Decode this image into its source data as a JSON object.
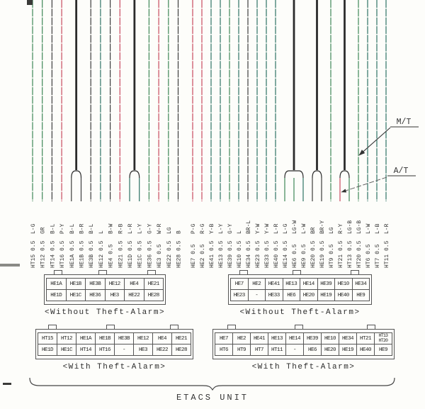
{
  "title": "ETACS wiring diagram",
  "colors": {
    "green": "#3e8757",
    "red": "#c8495e",
    "dark": "#3d3d3d",
    "teal": "#2e7265",
    "stem": "#2b2b2b",
    "ink": "#333333"
  },
  "code_color_map": {
    "L-G": "green",
    "GR": "green",
    "G-Y": "green",
    "LG": "green",
    "LG-W": "green",
    "LG-B": "green",
    "P-Y": "red",
    "R-B": "red",
    "W-R": "red",
    "P-G": "red",
    "R-G": "red",
    "R-Y": "red",
    "B-L": "dark",
    "B-R": "dark",
    "B-W": "dark",
    "B": "dark",
    "BR-L": "dark",
    "BR": "dark",
    "BR-Y": "dark",
    "L": "teal",
    "L-R": "teal",
    "L-Y": "teal",
    "Y-B": "teal",
    "Y-W": "teal",
    "L-W": "teal",
    "L-B": "teal"
  },
  "wire_groups": [
    {
      "name": "left",
      "wires": [
        {
          "id": "HT15",
          "size": "0.5",
          "code": "L-G"
        },
        {
          "id": "HT12",
          "size": "0.5",
          "code": "GR"
        },
        {
          "id": "HT14",
          "size": "0.5",
          "code": "B-L"
        },
        {
          "id": "HT16",
          "size": "0.5",
          "code": "P-Y"
        },
        {
          "id": "HE1A",
          "size": "0.5",
          "code": "B-L"
        },
        {
          "id": "HE1B",
          "size": "0.5",
          "code": "B-R"
        },
        {
          "id": "HE3B",
          "size": "0.5",
          "code": "B-L"
        },
        {
          "id": "HE12",
          "size": "0.5",
          "code": "L"
        },
        {
          "id": "HE4",
          "size": "0.5",
          "code": "B-W"
        },
        {
          "id": "HE21",
          "size": "0.5",
          "code": "R-B"
        },
        {
          "id": "HE1D",
          "size": "0.5",
          "code": "L-R"
        },
        {
          "id": "HE1C",
          "size": "0.5",
          "code": "L-Y"
        },
        {
          "id": "HE36",
          "size": "0.5",
          "code": "G-Y"
        },
        {
          "id": "HE3",
          "size": "0.5",
          "code": "W-R"
        },
        {
          "id": "HE22",
          "size": "0.5",
          "code": "LG"
        },
        {
          "id": "HE28",
          "size": "0.5",
          "code": "B"
        }
      ],
      "merges": [
        [
          4,
          5
        ],
        [
          10,
          11
        ]
      ]
    },
    {
      "name": "right",
      "wires": [
        {
          "id": "HE7",
          "size": "0.5",
          "code": "P-G"
        },
        {
          "id": "HE2",
          "size": "0.5",
          "code": "R-G"
        },
        {
          "id": "HE41",
          "size": "0.5",
          "code": "Y-B"
        },
        {
          "id": "HE13",
          "size": "0.5",
          "code": "L-Y"
        },
        {
          "id": "HE39",
          "size": "0.5",
          "code": "G-Y"
        },
        {
          "id": "HE10",
          "size": "0.5",
          "code": "L"
        },
        {
          "id": "HE34",
          "size": "0.5",
          "code": "BR-L"
        },
        {
          "id": "HE23",
          "size": "0.5",
          "code": "Y-W"
        },
        {
          "id": "HE33",
          "size": "0.5",
          "code": "Y-W"
        },
        {
          "id": "HE40",
          "size": "0.5",
          "code": "L-R"
        },
        {
          "id": "HE14",
          "size": "0.5",
          "code": "L-G"
        },
        {
          "id": "HE6",
          "size": "0.5",
          "code": "LG-W"
        },
        {
          "id": "HE9",
          "size": "0.5",
          "code": "L-W"
        },
        {
          "id": "HE20",
          "size": "0.5",
          "code": "BR"
        },
        {
          "id": "HE19",
          "size": "0.5",
          "code": "BR-Y"
        },
        {
          "id": "HT9",
          "size": "0.5",
          "code": "LG"
        },
        {
          "id": "HT21",
          "size": "0.5",
          "code": "R-Y"
        },
        {
          "id": "HT13",
          "size": "0.5",
          "code": "LG-B"
        },
        {
          "id": "HT20",
          "size": "0.5",
          "code": "LG-B"
        },
        {
          "id": "HT6",
          "size": "0.5",
          "code": "L-W"
        },
        {
          "id": "HT7",
          "size": "0.5",
          "code": "L-B"
        },
        {
          "id": "HT11",
          "size": "0.5",
          "code": "L-R"
        }
      ],
      "merges": [
        [
          10,
          11,
          12
        ],
        [
          13,
          14
        ],
        [
          16,
          17
        ]
      ]
    }
  ],
  "annotations": {
    "mt_label": "M/T",
    "at_label": "A/T"
  },
  "connectors": [
    {
      "name": "left-without-theft-alarm",
      "caption": "<Without Theft-Alarm>",
      "rows": [
        [
          "HE1A",
          "HE1B",
          "HE3B",
          "HE12",
          "HE4",
          "HE21"
        ],
        [
          "HE1D",
          "HE1C",
          "HE36",
          "HE3",
          "HE22",
          "HE28"
        ]
      ]
    },
    {
      "name": "right-without-theft-alarm",
      "caption": "<Without Theft-Alarm>",
      "rows": [
        [
          "HE7",
          "HE2",
          "HE41",
          "HE13",
          "HE14",
          "HE39",
          "HE10",
          "HE34"
        ],
        [
          "HE23",
          "-",
          "HE33",
          "HE6",
          "HE20",
          "HE19",
          "HE40",
          "HE9"
        ]
      ]
    },
    {
      "name": "left-with-theft-alarm",
      "caption": "<With Theft-Alarm>",
      "rows": [
        [
          "HT15",
          "HT12",
          "HE1A",
          "HE1B",
          "HE3B",
          "HE12",
          "HE4",
          "HE21"
        ],
        [
          "HE1D",
          "HE1C",
          "HT14",
          "HT16",
          "-",
          "HE3",
          "HE22",
          "HE28"
        ]
      ]
    },
    {
      "name": "right-with-theft-alarm",
      "caption": "<With Theft-Alarm>",
      "rows": [
        [
          "HE7",
          "HE2",
          "HE41",
          "HE13",
          "HE14",
          "HE39",
          "HE10",
          "HE34",
          "HT21",
          "HT13\nHT20"
        ],
        [
          "HT6",
          "HT9",
          "HT7",
          "HT11",
          "-",
          "HE6",
          "HE20",
          "HE19",
          "HE40",
          "HE9"
        ]
      ]
    }
  ],
  "footer": {
    "label": "ETACS UNIT"
  }
}
